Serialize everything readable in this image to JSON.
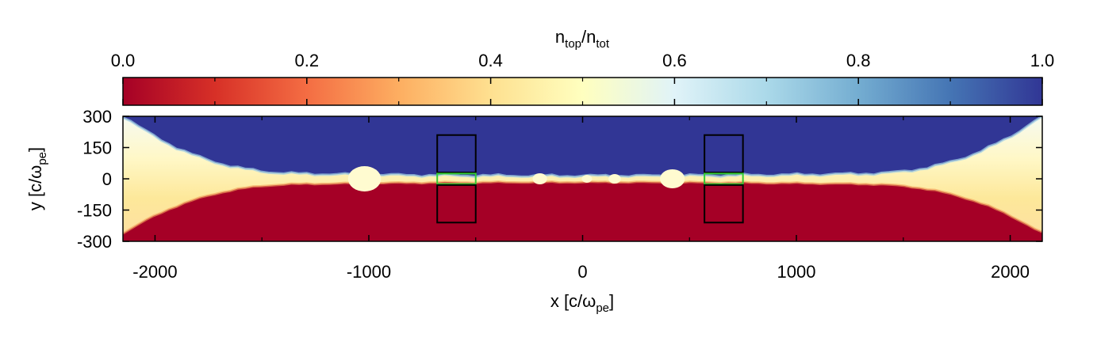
{
  "chart_data": {
    "type": "heatmap",
    "colorbar": {
      "label_main": "n",
      "label_sub1": "top",
      "label_mid": "/n",
      "label_sub2": "tot",
      "range": [
        0.0,
        1.0
      ],
      "ticks": [
        "0.0",
        "0.2",
        "0.4",
        "0.6",
        "0.8",
        "1.0"
      ],
      "tick_values": [
        0.0,
        0.2,
        0.4,
        0.6,
        0.8,
        1.0
      ],
      "colormap": [
        "#a50026",
        "#d73027",
        "#f46d43",
        "#fdae61",
        "#fee090",
        "#ffffbf",
        "#e0f3f8",
        "#abd9e9",
        "#74add1",
        "#4575b4",
        "#313695"
      ]
    },
    "x_axis": {
      "label_main": "x [c/ω",
      "label_sub": "pe",
      "label_end": "]",
      "range": [
        -2150,
        2150
      ],
      "ticks": [
        "-2000",
        "-1000",
        "0",
        "1000",
        "2000"
      ],
      "tick_values": [
        -2000,
        -1000,
        0,
        1000,
        2000
      ]
    },
    "y_axis": {
      "label_main": "y [c/ω",
      "label_sub": "pe",
      "label_end": "]",
      "range": [
        -300,
        300
      ],
      "ticks": [
        "300",
        "150",
        "0",
        "-150",
        "-300"
      ],
      "tick_values": [
        300,
        150,
        0,
        -150,
        -300
      ]
    },
    "field_description": {
      "upper_value": 1.0,
      "lower_value": 0.0,
      "mixing_layer": "thin near x=0, widening toward |x|=2150",
      "plasmoids_x": [
        -1020,
        -200,
        20,
        150,
        420
      ]
    },
    "regions": [
      {
        "name": "left-upper-box",
        "color": "#000000",
        "x": [
          -680,
          -500
        ],
        "y": [
          30,
          210
        ]
      },
      {
        "name": "left-middle-box",
        "color": "#33cc33",
        "x": [
          -680,
          -500
        ],
        "y": [
          -25,
          25
        ]
      },
      {
        "name": "left-lower-box",
        "color": "#000000",
        "x": [
          -680,
          -500
        ],
        "y": [
          -210,
          -30
        ]
      },
      {
        "name": "right-upper-box",
        "color": "#000000",
        "x": [
          570,
          750
        ],
        "y": [
          30,
          210
        ]
      },
      {
        "name": "right-middle-box",
        "color": "#33cc33",
        "x": [
          570,
          750
        ],
        "y": [
          -25,
          25
        ]
      },
      {
        "name": "right-lower-box",
        "color": "#000000",
        "x": [
          570,
          750
        ],
        "y": [
          -210,
          -30
        ]
      }
    ]
  }
}
